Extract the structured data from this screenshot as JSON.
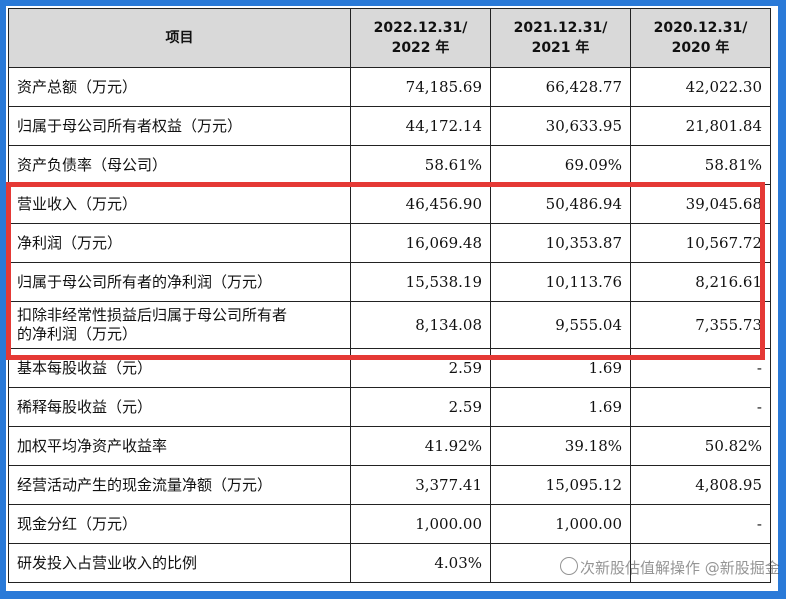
{
  "header": {
    "item": "项目",
    "col1_line1": "2022.12.31/",
    "col1_line2": "2022 年",
    "col2_line1": "2021.12.31/",
    "col2_line2": "2021 年",
    "col3_line1": "2020.12.31/",
    "col3_line2": "2020 年"
  },
  "rows": [
    {
      "label": "资产总额（万元）",
      "v2022": "74,185.69",
      "v2021": "66,428.77",
      "v2020": "42,022.30"
    },
    {
      "label": "归属于母公司所有者权益（万元）",
      "v2022": "44,172.14",
      "v2021": "30,633.95",
      "v2020": "21,801.84"
    },
    {
      "label": "资产负债率（母公司）",
      "v2022": "58.61%",
      "v2021": "69.09%",
      "v2020": "58.81%"
    },
    {
      "label": "营业收入（万元）",
      "v2022": "46,456.90",
      "v2021": "50,486.94",
      "v2020": "39,045.68"
    },
    {
      "label": "净利润（万元）",
      "v2022": "16,069.48",
      "v2021": "10,353.87",
      "v2020": "10,567.72"
    },
    {
      "label": "归属于母公司所有者的净利润（万元）",
      "v2022": "15,538.19",
      "v2021": "10,113.76",
      "v2020": "8,216.61"
    },
    {
      "label_line1": "扣除非经常性损益后归属于母公司所有者",
      "label_line2": "的净利润（万元）",
      "v2022": "8,134.08",
      "v2021": "9,555.04",
      "v2020": "7,355.73"
    },
    {
      "label": "基本每股收益（元）",
      "v2022": "2.59",
      "v2021": "1.69",
      "v2020": "-"
    },
    {
      "label": "稀释每股收益（元）",
      "v2022": "2.59",
      "v2021": "1.69",
      "v2020": "-"
    },
    {
      "label": "加权平均净资产收益率",
      "v2022": "41.92%",
      "v2021": "39.18%",
      "v2020": "50.82%"
    },
    {
      "label": "经营活动产生的现金流量净额（万元）",
      "v2022": "3,377.41",
      "v2021": "15,095.12",
      "v2020": "4,808.95"
    },
    {
      "label": "现金分红（万元）",
      "v2022": "1,000.00",
      "v2021": "1,000.00",
      "v2020": "-"
    },
    {
      "label": "研发投入占营业收入的比例",
      "v2022": "4.03%",
      "v2021": "",
      "v2020": ""
    }
  ],
  "watermark": {
    "icon": "wechat-icon",
    "text": "次新股估值解操作 @新股掘金"
  },
  "colors": {
    "frame": "#2a7ad8",
    "highlight": "#e53935",
    "header_bg": "#d9d9d9"
  }
}
